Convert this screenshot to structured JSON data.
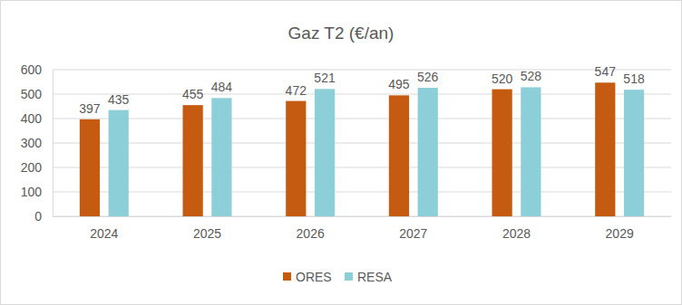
{
  "chart_data": {
    "type": "bar",
    "title": "Gaz T2 (€/an)",
    "categories": [
      "2024",
      "2025",
      "2026",
      "2027",
      "2028",
      "2029"
    ],
    "series": [
      {
        "name": "ORES",
        "color": "#c55a11",
        "values": [
          397,
          455,
          472,
          495,
          520,
          547
        ]
      },
      {
        "name": "RESA",
        "color": "#8ccfd9",
        "values": [
          435,
          484,
          521,
          526,
          528,
          518
        ]
      }
    ],
    "ylim": [
      0,
      600
    ],
    "yticks": [
      0,
      100,
      200,
      300,
      400,
      500,
      600
    ],
    "grid": true,
    "legend": "bottom",
    "data_labels": true
  }
}
